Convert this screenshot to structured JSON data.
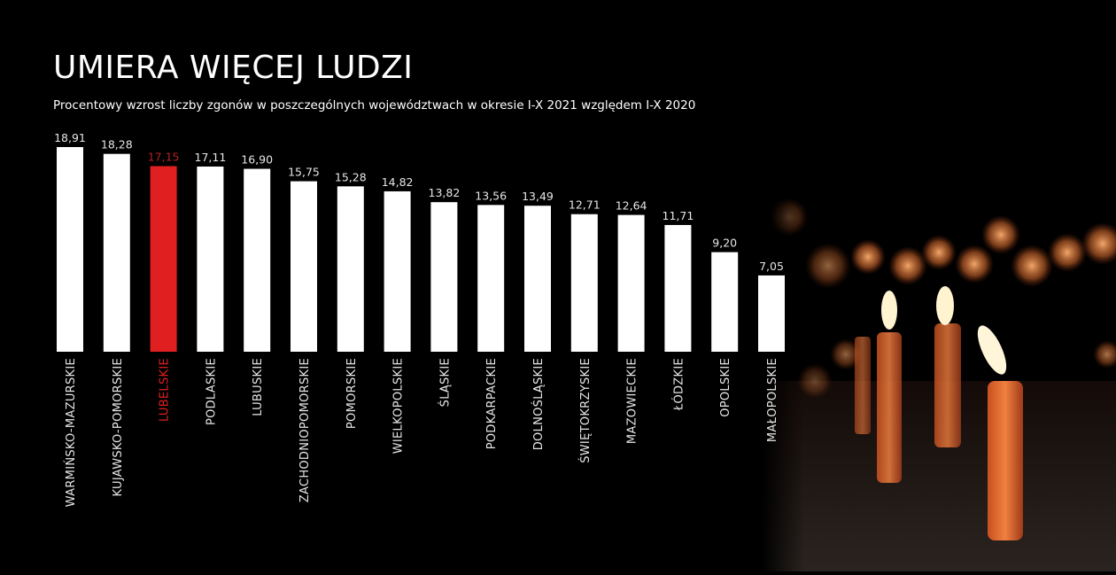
{
  "title": "UMIERA WIĘCEJ LUDZI",
  "subtitle": "Procentowy wzrost liczby zgonów w poszczególnych województwach w okresie I-X 2021 względem I-X 2020",
  "colors": {
    "background": "#000000",
    "bar": "#ffffff",
    "highlight": "#e02020",
    "value_text": "#e6e6e6",
    "highlight_text": "#b32020"
  },
  "chart_data": {
    "type": "bar",
    "categories": [
      "WARMIŃSKO-MAZURSKIE",
      "KUJAWSKO-POMORSKIE",
      "LUBELSKIE",
      "PODLASKIE",
      "LUBUSKIE",
      "ZACHODNIOPOMORSKIE",
      "POMORSKIE",
      "WIELKOPOLSKIE",
      "ŚLĄSKIE",
      "PODKARPACKIE",
      "DOLNOŚLĄSKIE",
      "ŚWIĘTOKRZYSKIE",
      "MAZOWIECKIE",
      "ŁÓDZKIE",
      "OPOLSKIE",
      "MAŁOPOLSKIE"
    ],
    "values": [
      18.91,
      18.28,
      17.15,
      17.11,
      16.9,
      15.75,
      15.28,
      14.82,
      13.82,
      13.56,
      13.49,
      12.71,
      12.64,
      11.71,
      9.2,
      7.05
    ],
    "value_labels": [
      "18,91",
      "18,28",
      "17,15",
      "17,11",
      "16,90",
      "15,75",
      "15,28",
      "14,82",
      "13,82",
      "13,56",
      "13,49",
      "12,71",
      "12,64",
      "11,71",
      "9,20",
      "7,05"
    ],
    "highlight_index": 2,
    "xlabel": "",
    "ylabel": "",
    "ylim": [
      0,
      20
    ],
    "grid": false,
    "legend": "none"
  }
}
